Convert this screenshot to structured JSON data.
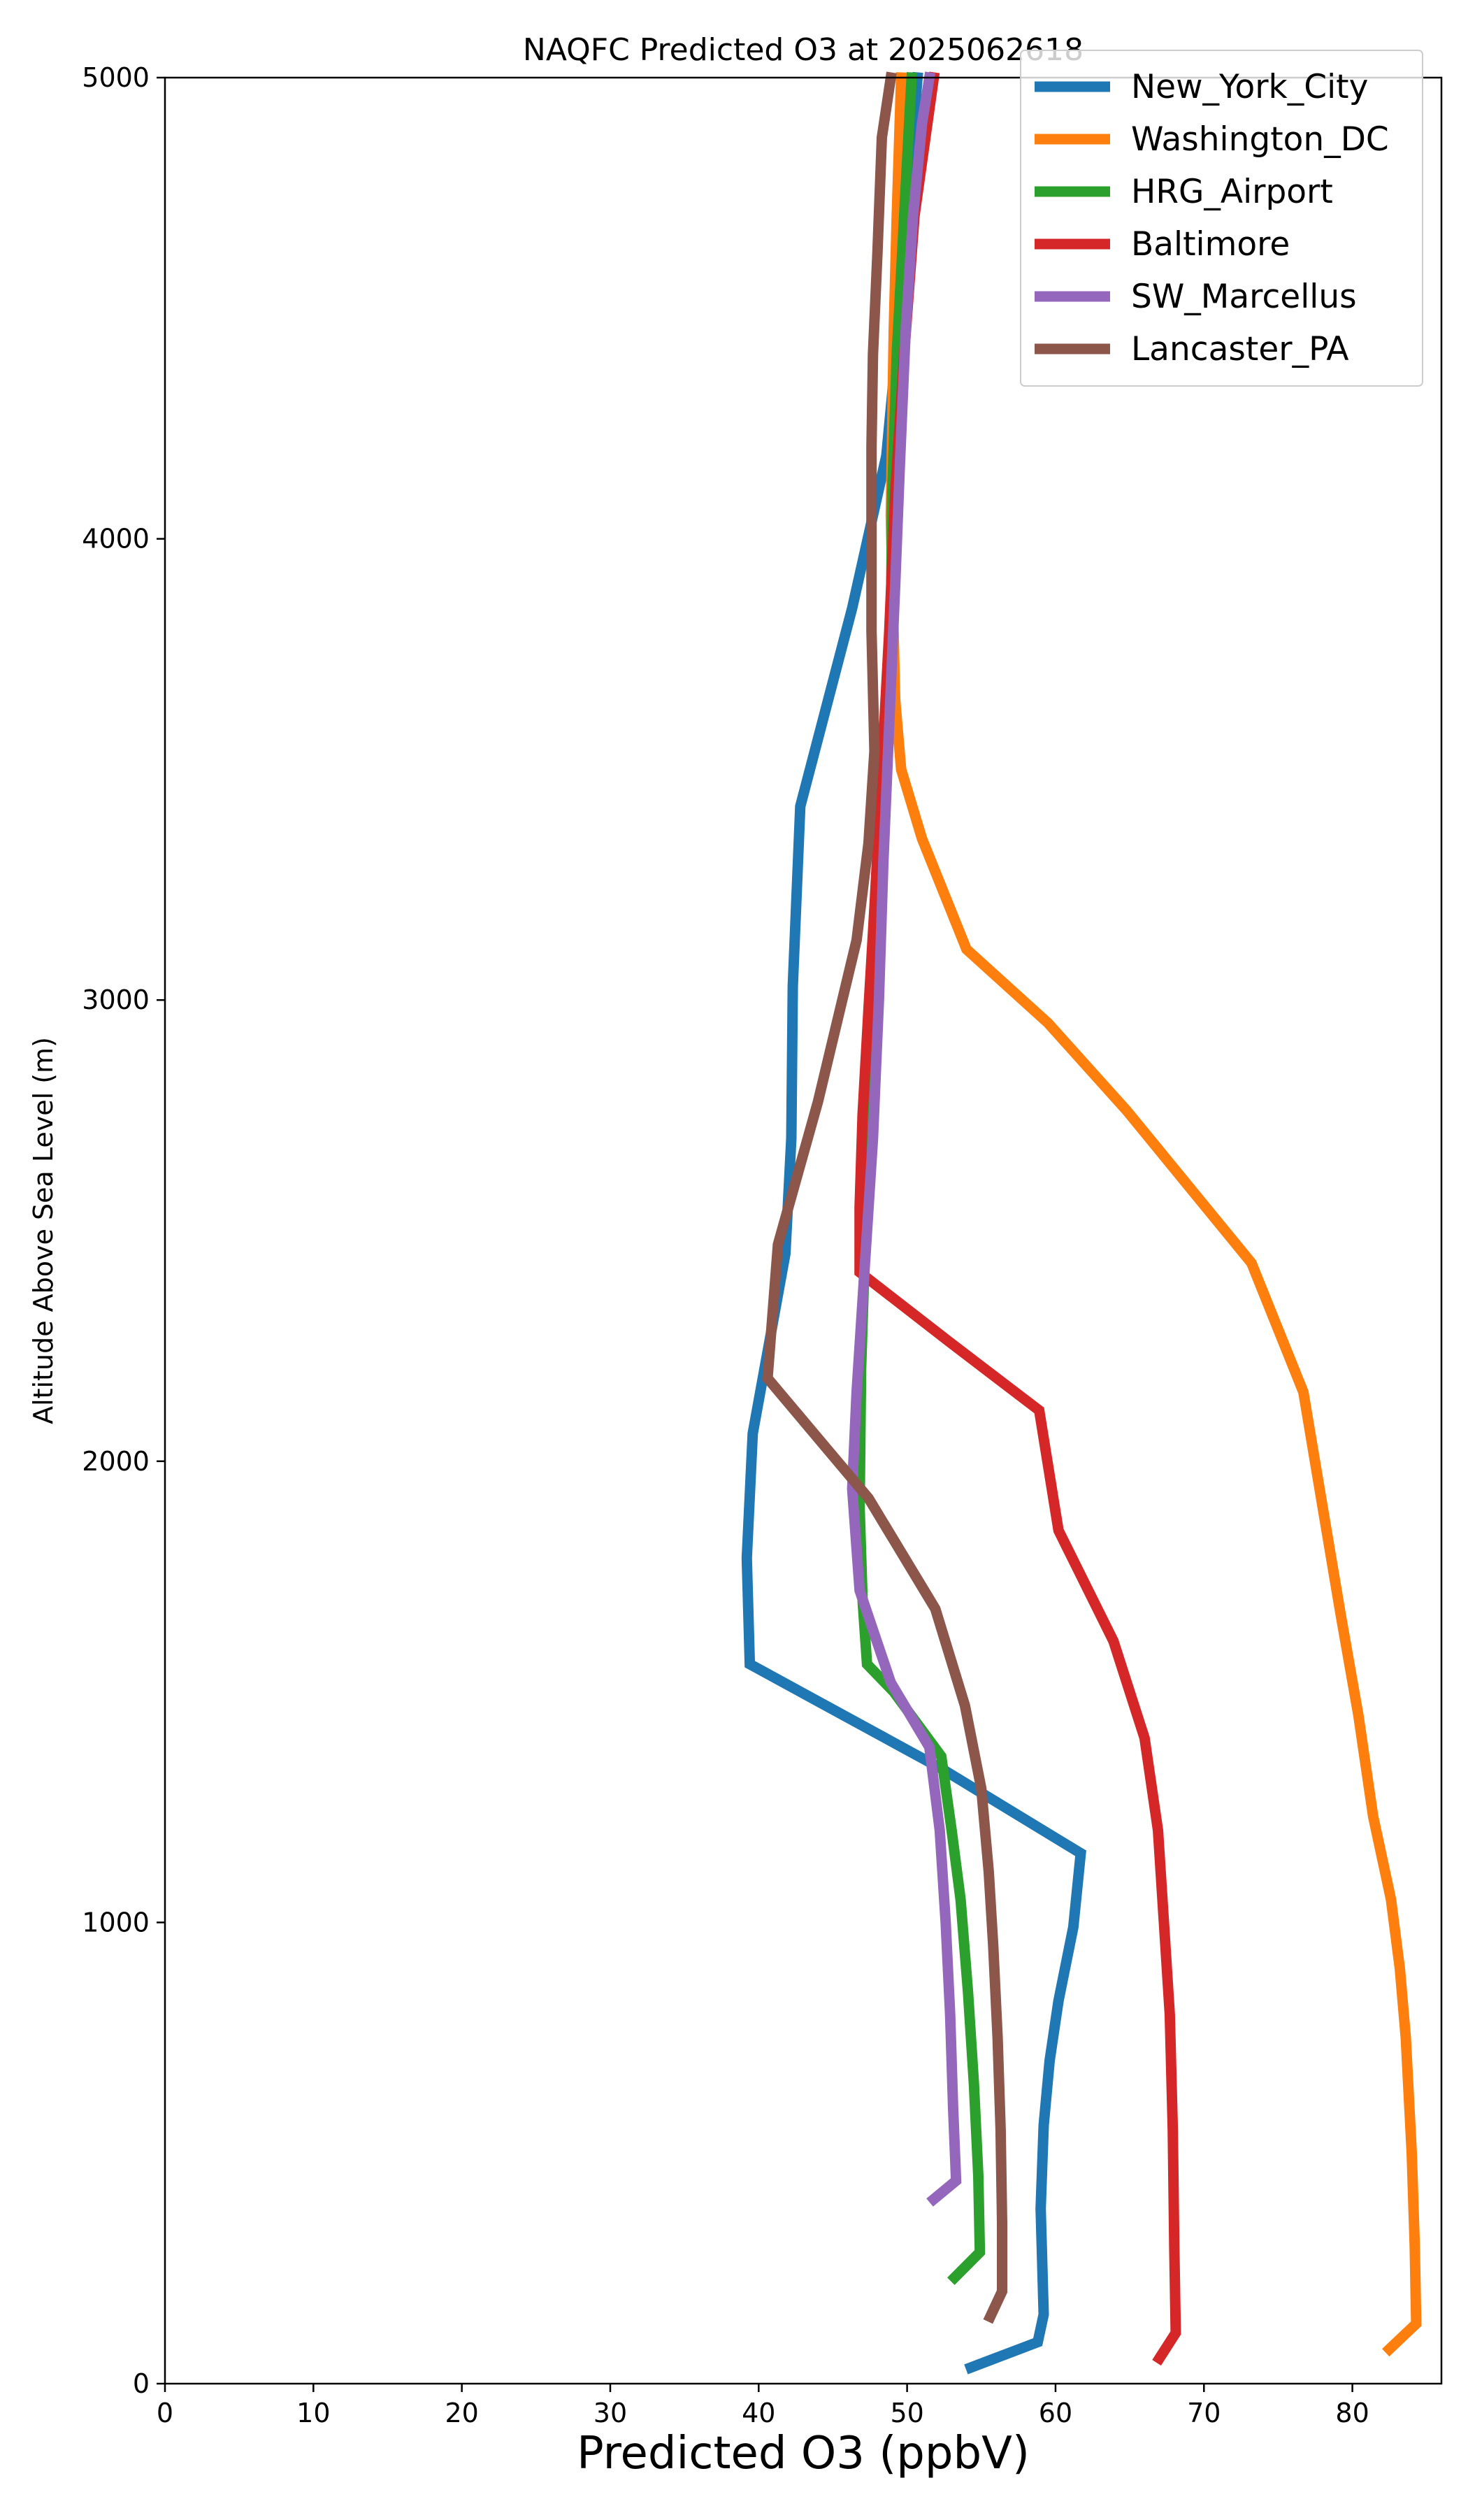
{
  "chart_data": {
    "type": "line",
    "title": "NAQFC Predicted O3 at 2025062618",
    "xlabel": "Predicted O3 (ppbV)",
    "ylabel": "Altitude Above Sea Level (m)",
    "xlim": [
      0,
      86
    ],
    "ylim": [
      0,
      5000
    ],
    "xticks": [
      0,
      10,
      20,
      30,
      40,
      50,
      60,
      70,
      80
    ],
    "yticks": [
      0,
      1000,
      2000,
      3000,
      4000,
      5000
    ],
    "grid": false,
    "legend_position": "top-right",
    "series": [
      {
        "name": "New_York_City",
        "color": "#1f77b4",
        "points": [
          [
            54.3,
            35
          ],
          [
            58.8,
            90
          ],
          [
            59.2,
            150
          ],
          [
            59.0,
            380
          ],
          [
            59.2,
            560
          ],
          [
            59.6,
            700
          ],
          [
            60.2,
            830
          ],
          [
            61.2,
            990
          ],
          [
            61.7,
            1150
          ],
          [
            52.5,
            1330
          ],
          [
            39.4,
            1560
          ],
          [
            39.2,
            1790
          ],
          [
            39.6,
            2060
          ],
          [
            41.8,
            2450
          ],
          [
            42.2,
            2700
          ],
          [
            42.3,
            3030
          ],
          [
            42.8,
            3420
          ],
          [
            46.3,
            3850
          ],
          [
            48.6,
            4180
          ],
          [
            49.6,
            4520
          ],
          [
            50.2,
            4800
          ],
          [
            50.7,
            5000
          ]
        ]
      },
      {
        "name": "Washington_DC",
        "color": "#ff7f0e",
        "points": [
          [
            82.5,
            75
          ],
          [
            84.3,
            130
          ],
          [
            84.2,
            300
          ],
          [
            84.0,
            500
          ],
          [
            83.6,
            750
          ],
          [
            83.2,
            900
          ],
          [
            82.6,
            1050
          ],
          [
            81.4,
            1230
          ],
          [
            80.4,
            1450
          ],
          [
            79.2,
            1670
          ],
          [
            78.0,
            1900
          ],
          [
            76.7,
            2150
          ],
          [
            73.2,
            2430
          ],
          [
            64.8,
            2760
          ],
          [
            59.5,
            2950
          ],
          [
            54.0,
            3110
          ],
          [
            51.0,
            3350
          ],
          [
            49.6,
            3500
          ],
          [
            49.2,
            3650
          ],
          [
            48.9,
            4050
          ],
          [
            49.1,
            4450
          ],
          [
            49.3,
            4700
          ],
          [
            49.6,
            5000
          ]
        ]
      },
      {
        "name": "HRG_Airport",
        "color": "#2ca02c",
        "points": [
          [
            53.2,
            230
          ],
          [
            54.9,
            285
          ],
          [
            54.8,
            450
          ],
          [
            54.5,
            650
          ],
          [
            54.1,
            850
          ],
          [
            53.6,
            1050
          ],
          [
            53.0,
            1200
          ],
          [
            52.3,
            1360
          ],
          [
            49.1,
            1500
          ],
          [
            47.3,
            1560
          ],
          [
            47.0,
            1700
          ],
          [
            46.8,
            1900
          ],
          [
            46.9,
            2200
          ],
          [
            47.2,
            2500
          ],
          [
            47.6,
            2900
          ],
          [
            48.2,
            3200
          ],
          [
            48.6,
            3500
          ],
          [
            48.9,
            3800
          ],
          [
            49.0,
            4100
          ],
          [
            49.3,
            4400
          ],
          [
            49.8,
            4700
          ],
          [
            50.3,
            5000
          ]
        ]
      },
      {
        "name": "Baltimore",
        "color": "#d62728",
        "points": [
          [
            67.0,
            55
          ],
          [
            68.1,
            110
          ],
          [
            68.0,
            300
          ],
          [
            67.9,
            550
          ],
          [
            67.7,
            800
          ],
          [
            67.3,
            1000
          ],
          [
            66.9,
            1200
          ],
          [
            66.0,
            1400
          ],
          [
            63.9,
            1610
          ],
          [
            60.2,
            1850
          ],
          [
            58.9,
            2110
          ],
          [
            52.8,
            2260
          ],
          [
            46.8,
            2410
          ],
          [
            46.8,
            2550
          ],
          [
            47.0,
            2750
          ],
          [
            47.4,
            2980
          ],
          [
            47.8,
            3200
          ],
          [
            48.3,
            3500
          ],
          [
            48.8,
            3800
          ],
          [
            49.2,
            4100
          ],
          [
            49.8,
            4400
          ],
          [
            50.5,
            4700
          ],
          [
            51.8,
            5000
          ]
        ]
      },
      {
        "name": "SW_Marcellus",
        "color": "#9467bd",
        "points": [
          [
            51.8,
            400
          ],
          [
            53.3,
            440
          ],
          [
            53.1,
            600
          ],
          [
            52.9,
            800
          ],
          [
            52.6,
            1000
          ],
          [
            52.2,
            1200
          ],
          [
            51.5,
            1380
          ],
          [
            48.9,
            1520
          ],
          [
            46.8,
            1720
          ],
          [
            46.3,
            1940
          ],
          [
            46.6,
            2150
          ],
          [
            47.1,
            2400
          ],
          [
            47.7,
            2700
          ],
          [
            48.1,
            3000
          ],
          [
            48.4,
            3300
          ],
          [
            48.8,
            3600
          ],
          [
            49.2,
            3900
          ],
          [
            49.5,
            4150
          ],
          [
            49.9,
            4450
          ],
          [
            50.4,
            4700
          ],
          [
            51.0,
            4900
          ],
          [
            51.5,
            5000
          ]
        ]
      },
      {
        "name": "Lancaster_PA",
        "color": "#8c564b",
        "points": [
          [
            55.6,
            145
          ],
          [
            56.4,
            200
          ],
          [
            56.4,
            350
          ],
          [
            56.3,
            550
          ],
          [
            56.1,
            750
          ],
          [
            55.8,
            950
          ],
          [
            55.5,
            1110
          ],
          [
            55.0,
            1290
          ],
          [
            53.9,
            1470
          ],
          [
            51.9,
            1680
          ],
          [
            47.4,
            1920
          ],
          [
            40.6,
            2180
          ],
          [
            41.3,
            2470
          ],
          [
            44.0,
            2780
          ],
          [
            46.6,
            3130
          ],
          [
            47.4,
            3340
          ],
          [
            47.8,
            3540
          ],
          [
            47.6,
            3800
          ],
          [
            47.6,
            4200
          ],
          [
            47.7,
            4400
          ],
          [
            48.0,
            4620
          ],
          [
            48.3,
            4870
          ],
          [
            48.9,
            5000
          ]
        ]
      }
    ]
  }
}
